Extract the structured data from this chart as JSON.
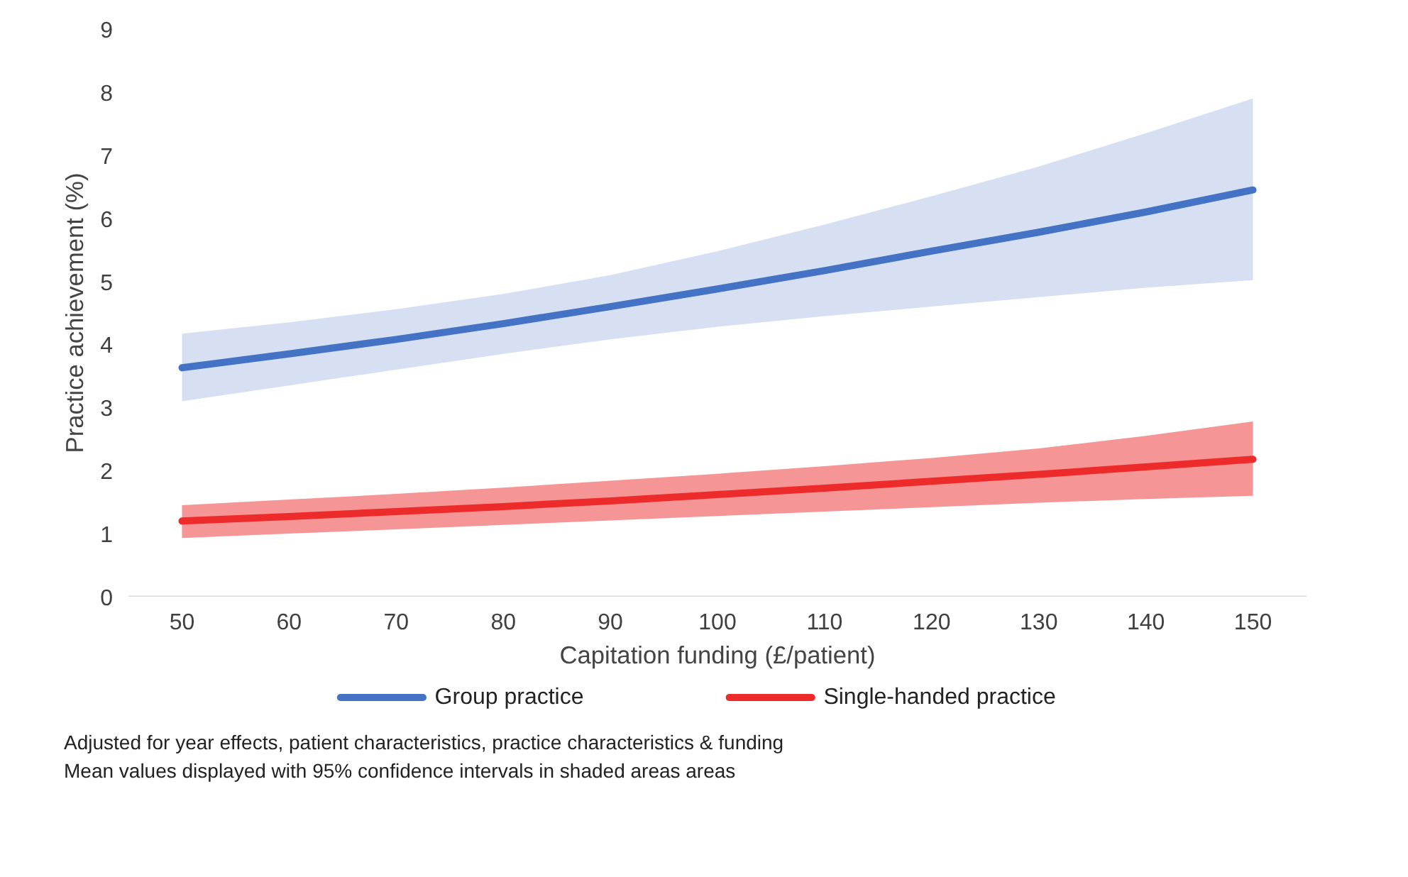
{
  "chart_data": {
    "type": "line",
    "xlabel": "Capitation funding (£/patient)",
    "ylabel": "Practice achievement (%)",
    "x": [
      50,
      60,
      70,
      80,
      90,
      100,
      110,
      120,
      130,
      140,
      150
    ],
    "xlim": [
      45,
      155
    ],
    "xticks": [
      50,
      60,
      70,
      80,
      90,
      100,
      110,
      120,
      130,
      140,
      150
    ],
    "ylim": [
      0,
      9
    ],
    "yticks": [
      0,
      1,
      2,
      3,
      4,
      5,
      6,
      7,
      8,
      9
    ],
    "legend": "bottom",
    "line_style": "solid",
    "series": [
      {
        "name": "Group practice",
        "color": "#4472c4",
        "values": [
          3.63,
          3.85,
          4.08,
          4.33,
          4.6,
          4.88,
          5.17,
          5.48,
          5.78,
          6.1,
          6.45
        ],
        "lower": [
          3.1,
          3.35,
          3.6,
          3.85,
          4.08,
          4.28,
          4.45,
          4.6,
          4.75,
          4.9,
          5.02
        ],
        "upper": [
          4.17,
          4.35,
          4.56,
          4.8,
          5.1,
          5.48,
          5.9,
          6.35,
          6.82,
          7.35,
          7.9
        ]
      },
      {
        "name": "Single-handed practice",
        "color": "#ee2b2b",
        "values": [
          1.2,
          1.27,
          1.35,
          1.43,
          1.52,
          1.62,
          1.72,
          1.83,
          1.94,
          2.06,
          2.18
        ],
        "lower": [
          0.93,
          1.0,
          1.07,
          1.14,
          1.21,
          1.28,
          1.35,
          1.42,
          1.49,
          1.55,
          1.6
        ],
        "upper": [
          1.45,
          1.54,
          1.63,
          1.73,
          1.84,
          1.95,
          2.07,
          2.2,
          2.35,
          2.55,
          2.78
        ]
      }
    ],
    "annotations": [
      "Adjusted for year effects, patient characteristics, practice characteristics & funding",
      "Mean values displayed with 95% confidence intervals in shaded areas areas"
    ]
  }
}
